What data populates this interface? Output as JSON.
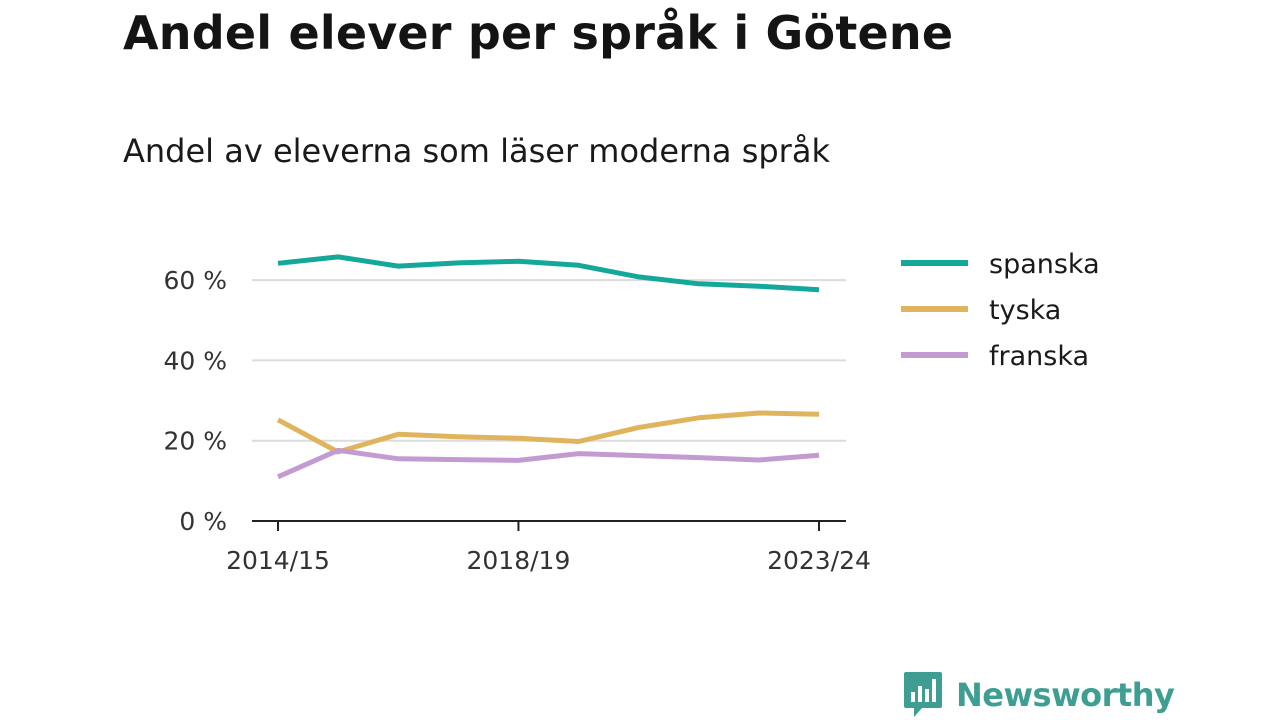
{
  "header": {
    "title": "Andel elever per språk i Götene",
    "subtitle": "Andel av eleverna som läser moderna språk"
  },
  "brand": {
    "name": "Newsworthy",
    "color": "#3e9e91",
    "icon": "bar-chart-bubble-icon"
  },
  "chart_data": {
    "type": "line",
    "title": "Andel elever per språk i Götene",
    "subtitle": "Andel av eleverna som läser moderna språk",
    "x": [
      "2014/15",
      "2015/16",
      "2016/17",
      "2017/18",
      "2018/19",
      "2019/20",
      "2020/21",
      "2021/22",
      "2022/23",
      "2023/24"
    ],
    "x_tick_labels": [
      "2014/15",
      "2018/19",
      "2023/24"
    ],
    "y_ticks": [
      0,
      20,
      40,
      60
    ],
    "y_tick_labels": [
      "0 %",
      "20 %",
      "40 %",
      "60 %"
    ],
    "ylim": [
      0,
      70
    ],
    "grid": "horizontal",
    "legend": "right",
    "series": [
      {
        "name": "spanska",
        "color": "#13a89a",
        "values": [
          64.2,
          65.8,
          63.5,
          64.3,
          64.7,
          63.7,
          60.8,
          59.1,
          58.5,
          57.6
        ]
      },
      {
        "name": "tyska",
        "color": "#e0b45c",
        "values": [
          25.2,
          17.2,
          21.6,
          21.0,
          20.6,
          19.8,
          23.3,
          25.7,
          26.9,
          26.6
        ]
      },
      {
        "name": "franska",
        "color": "#c39bd0",
        "values": [
          11.0,
          17.6,
          15.5,
          15.3,
          15.1,
          16.8,
          16.3,
          15.8,
          15.2,
          16.4
        ]
      }
    ]
  }
}
